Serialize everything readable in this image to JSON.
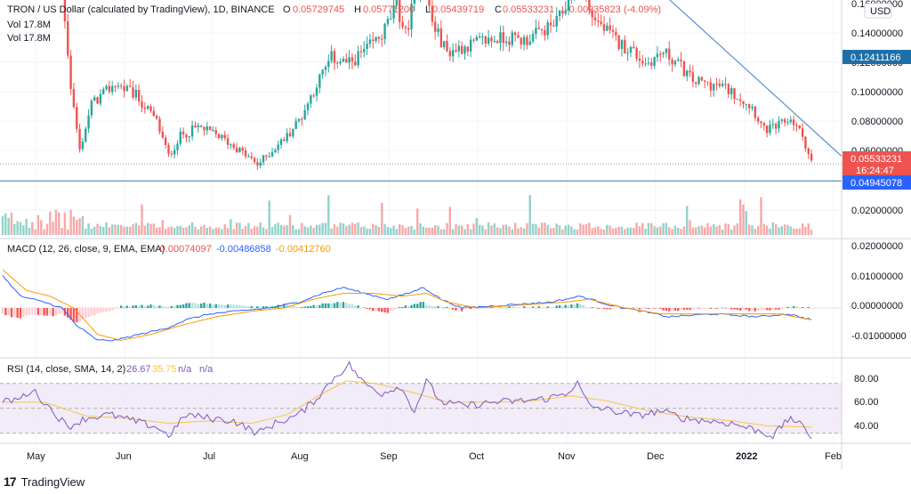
{
  "header": {
    "symbol_line": "TRON / US Dollar (calculated by TradingView), 1D, BINANCE",
    "o_label": "O",
    "o_value": "0.05729745",
    "h_label": "H",
    "h_value": "0.05771200",
    "l_label": "L",
    "l_value": "0.05439719",
    "c_label": "C",
    "c_value": "0.05533231",
    "change": "-0.00235823 (-4.09%)",
    "vol_line1": "Vol  17.8M",
    "vol_line2": "Vol  17.8M"
  },
  "currency_badge": "USD",
  "macd_legend": {
    "title": "MACD (12, 26, close, 9, EMA, EMA)",
    "v1": "-0.00074097",
    "v2": "-0.00486858",
    "v3": "-0.00412760"
  },
  "rsi_legend": {
    "title": "RSI (14, close, SMA, 14, 2)",
    "v1": "26.67",
    "v2": "35.75",
    "v3": "n/a",
    "v4": "n/a"
  },
  "footer": {
    "brand": "TradingView"
  },
  "colors": {
    "up": "#26a69a",
    "down": "#ef5350",
    "macd": "#2962ff",
    "signal": "#ff9800",
    "rsi": "#7e57c2",
    "rsi_ma": "#f7c544",
    "hline": "#3b78a8",
    "grid": "#f0f3fa"
  },
  "chart_data": {
    "type": "candlestick",
    "x_tick_labels": [
      "May",
      "Jun",
      "Jul",
      "Aug",
      "Sep",
      "Oct",
      "Nov",
      "Dec",
      "2022",
      "Feb"
    ],
    "price_axis_ticks": [
      "0.16000000",
      "0.14000000",
      "0.12000000",
      "0.10000000",
      "0.08000000",
      "0.06000000",
      "0.02000000"
    ],
    "price_labels": {
      "last": "0.05533231",
      "countdown": "16:24:47",
      "resistance": "0.12411166",
      "support": "0.04945078"
    },
    "horizontal_lines": [
      0.12411166,
      0.04945078
    ],
    "trendline": {
      "from_date": "Nov 15",
      "from_value": 0.131,
      "to_date": "Jan 28",
      "to_value": 0.058
    },
    "price_keypoints": [
      [
        0,
        0.125
      ],
      [
        4,
        0.135
      ],
      [
        8,
        0.145
      ],
      [
        12,
        0.142
      ],
      [
        16,
        0.128
      ],
      [
        20,
        0.118
      ],
      [
        23,
        0.082
      ],
      [
        26,
        0.06
      ],
      [
        30,
        0.076
      ],
      [
        38,
        0.083
      ],
      [
        45,
        0.079
      ],
      [
        52,
        0.07
      ],
      [
        56,
        0.058
      ],
      [
        60,
        0.065
      ],
      [
        66,
        0.068
      ],
      [
        73,
        0.065
      ],
      [
        80,
        0.06
      ],
      [
        86,
        0.055
      ],
      [
        91,
        0.06
      ],
      [
        96,
        0.065
      ],
      [
        101,
        0.072
      ],
      [
        106,
        0.083
      ],
      [
        111,
        0.092
      ],
      [
        117,
        0.09
      ],
      [
        123,
        0.095
      ],
      [
        128,
        0.1
      ],
      [
        133,
        0.11
      ],
      [
        136,
        0.1
      ],
      [
        140,
        0.117
      ],
      [
        142,
        0.122
      ],
      [
        145,
        0.104
      ],
      [
        150,
        0.094
      ],
      [
        156,
        0.096
      ],
      [
        163,
        0.098
      ],
      [
        170,
        0.099
      ],
      [
        176,
        0.098
      ],
      [
        182,
        0.101
      ],
      [
        187,
        0.104
      ],
      [
        191,
        0.112
      ],
      [
        194,
        0.123
      ],
      [
        196,
        0.117
      ],
      [
        198,
        0.108
      ],
      [
        203,
        0.102
      ],
      [
        208,
        0.097
      ],
      [
        212,
        0.095
      ],
      [
        217,
        0.09
      ],
      [
        223,
        0.094
      ],
      [
        228,
        0.09
      ],
      [
        233,
        0.084
      ],
      [
        238,
        0.083
      ],
      [
        243,
        0.082
      ],
      [
        248,
        0.079
      ],
      [
        253,
        0.075
      ],
      [
        257,
        0.067
      ],
      [
        261,
        0.068
      ],
      [
        266,
        0.071
      ],
      [
        270,
        0.065
      ],
      [
        273,
        0.056
      ]
    ],
    "volume_range": [
      0,
      0.02
    ],
    "macd": {
      "ylim": [
        -0.013,
        0.022
      ],
      "ticks": [
        "0.02000000",
        "0.01000000",
        "0.00000000",
        "-0.01000000"
      ],
      "macd_keypoints": [
        [
          0,
          0.011
        ],
        [
          6,
          0.004
        ],
        [
          14,
          0.002
        ],
        [
          20,
          0.0
        ],
        [
          25,
          -0.006
        ],
        [
          32,
          -0.011
        ],
        [
          38,
          -0.011
        ],
        [
          46,
          -0.009
        ],
        [
          55,
          -0.007
        ],
        [
          62,
          -0.004
        ],
        [
          70,
          -0.002
        ],
        [
          80,
          -0.001
        ],
        [
          90,
          0.0
        ],
        [
          100,
          0.002
        ],
        [
          108,
          0.005
        ],
        [
          115,
          0.007
        ],
        [
          122,
          0.005
        ],
        [
          130,
          0.003
        ],
        [
          137,
          0.005
        ],
        [
          142,
          0.007
        ],
        [
          148,
          0.003
        ],
        [
          155,
          0.0
        ],
        [
          170,
          0.001
        ],
        [
          185,
          0.002
        ],
        [
          195,
          0.004
        ],
        [
          205,
          0.001
        ],
        [
          215,
          -0.001
        ],
        [
          225,
          -0.003
        ],
        [
          240,
          -0.002
        ],
        [
          255,
          -0.003
        ],
        [
          265,
          -0.002
        ],
        [
          273,
          -0.004
        ]
      ],
      "signal_keypoints": [
        [
          0,
          0.013
        ],
        [
          8,
          0.006
        ],
        [
          16,
          0.004
        ],
        [
          24,
          0.0
        ],
        [
          32,
          -0.009
        ],
        [
          40,
          -0.011
        ],
        [
          50,
          -0.009
        ],
        [
          60,
          -0.006
        ],
        [
          72,
          -0.003
        ],
        [
          85,
          -0.001
        ],
        [
          95,
          0.0
        ],
        [
          105,
          0.003
        ],
        [
          115,
          0.005
        ],
        [
          125,
          0.005
        ],
        [
          135,
          0.004
        ],
        [
          143,
          0.005
        ],
        [
          150,
          0.002
        ],
        [
          160,
          0.0
        ],
        [
          175,
          0.001
        ],
        [
          190,
          0.002
        ],
        [
          198,
          0.003
        ],
        [
          210,
          0.0
        ],
        [
          222,
          -0.002
        ],
        [
          235,
          -0.002
        ],
        [
          250,
          -0.002
        ],
        [
          262,
          -0.002
        ],
        [
          273,
          -0.004
        ]
      ]
    },
    "rsi": {
      "ylim": [
        22,
        90
      ],
      "ticks": [
        "80.00",
        "60.00",
        "40.00"
      ],
      "band_upper": 70,
      "band_mid": 50,
      "band_lower": 30,
      "rsi_keypoints": [
        [
          0,
          55
        ],
        [
          6,
          58
        ],
        [
          10,
          65
        ],
        [
          16,
          50
        ],
        [
          22,
          35
        ],
        [
          28,
          42
        ],
        [
          36,
          45
        ],
        [
          44,
          40
        ],
        [
          52,
          35
        ],
        [
          56,
          28
        ],
        [
          62,
          45
        ],
        [
          70,
          42
        ],
        [
          78,
          40
        ],
        [
          86,
          30
        ],
        [
          92,
          38
        ],
        [
          100,
          45
        ],
        [
          106,
          58
        ],
        [
          112,
          75
        ],
        [
          117,
          85
        ],
        [
          122,
          70
        ],
        [
          128,
          62
        ],
        [
          134,
          68
        ],
        [
          139,
          48
        ],
        [
          143,
          72
        ],
        [
          148,
          55
        ],
        [
          156,
          52
        ],
        [
          166,
          55
        ],
        [
          176,
          56
        ],
        [
          184,
          58
        ],
        [
          190,
          62
        ],
        [
          194,
          70
        ],
        [
          198,
          52
        ],
        [
          206,
          48
        ],
        [
          214,
          44
        ],
        [
          222,
          48
        ],
        [
          230,
          42
        ],
        [
          238,
          40
        ],
        [
          246,
          38
        ],
        [
          254,
          33
        ],
        [
          260,
          28
        ],
        [
          266,
          43
        ],
        [
          270,
          35
        ],
        [
          273,
          27
        ]
      ],
      "ma_keypoints": [
        [
          0,
          55
        ],
        [
          14,
          55
        ],
        [
          28,
          44
        ],
        [
          42,
          42
        ],
        [
          56,
          38
        ],
        [
          70,
          40
        ],
        [
          84,
          38
        ],
        [
          96,
          45
        ],
        [
          108,
          62
        ],
        [
          116,
          72
        ],
        [
          126,
          70
        ],
        [
          138,
          63
        ],
        [
          150,
          55
        ],
        [
          164,
          55
        ],
        [
          178,
          56
        ],
        [
          192,
          60
        ],
        [
          204,
          56
        ],
        [
          218,
          48
        ],
        [
          232,
          43
        ],
        [
          246,
          40
        ],
        [
          258,
          36
        ],
        [
          273,
          35
        ]
      ]
    }
  }
}
